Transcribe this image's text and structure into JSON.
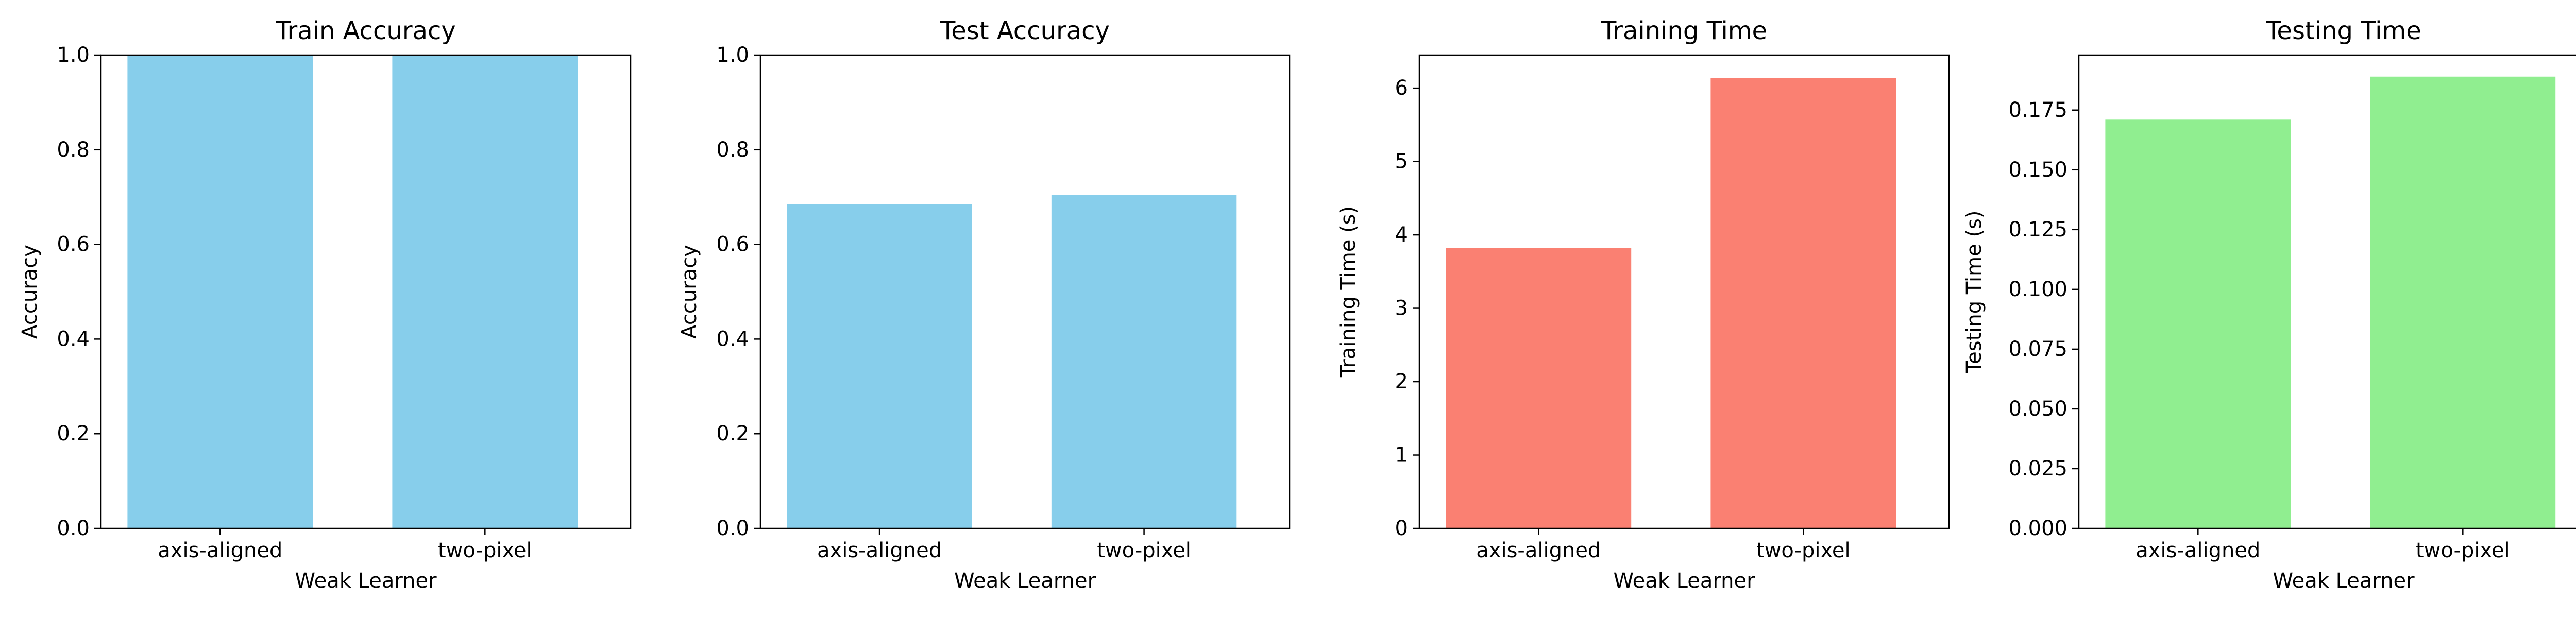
{
  "chart_data": [
    {
      "type": "bar",
      "title": "Train Accuracy",
      "xlabel": "Weak Learner",
      "ylabel": "Accuracy",
      "categories": [
        "axis-aligned",
        "two-pixel"
      ],
      "values": [
        1.0,
        1.0
      ],
      "ylim": [
        0,
        1.0
      ],
      "yticks": [
        "0.0",
        "0.2",
        "0.4",
        "0.6",
        "0.8",
        "1.0"
      ],
      "color": "#87ceeb",
      "grid": false
    },
    {
      "type": "bar",
      "title": "Test Accuracy",
      "xlabel": "Weak Learner",
      "ylabel": "Accuracy",
      "categories": [
        "axis-aligned",
        "two-pixel"
      ],
      "values": [
        0.685,
        0.705
      ],
      "ylim": [
        0,
        1.0
      ],
      "yticks": [
        "0.0",
        "0.2",
        "0.4",
        "0.6",
        "0.8",
        "1.0"
      ],
      "color": "#87ceeb",
      "grid": false
    },
    {
      "type": "bar",
      "title": "Training Time",
      "xlabel": "Weak Learner",
      "ylabel": "Training Time (s)",
      "categories": [
        "axis-aligned",
        "two-pixel"
      ],
      "values": [
        3.82,
        6.14
      ],
      "ylim": [
        0,
        6.45
      ],
      "yticks": [
        "0",
        "1",
        "2",
        "3",
        "4",
        "5",
        "6"
      ],
      "color": "#fa8072",
      "grid": false
    },
    {
      "type": "bar",
      "title": "Testing Time",
      "xlabel": "Weak Learner",
      "ylabel": "Testing Time (s)",
      "categories": [
        "axis-aligned",
        "two-pixel"
      ],
      "values": [
        0.171,
        0.189
      ],
      "ylim": [
        0,
        0.198
      ],
      "yticks": [
        "0.000",
        "0.025",
        "0.050",
        "0.075",
        "0.100",
        "0.125",
        "0.150",
        "0.175"
      ],
      "color": "#90ee90",
      "grid": false
    }
  ]
}
